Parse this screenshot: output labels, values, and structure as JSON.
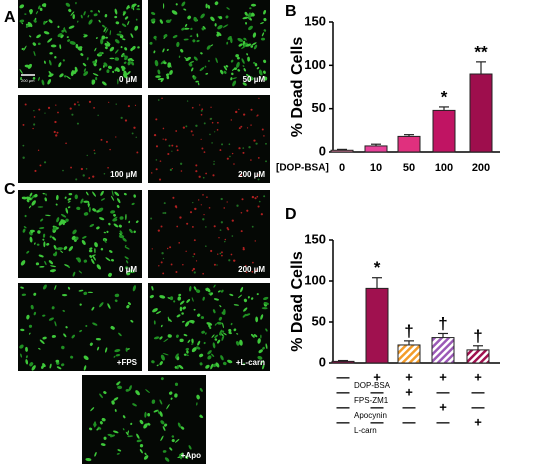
{
  "image_panels": [
    {
      "label": "A",
      "captions": [
        "0 µM",
        "50 µM",
        "100 µM",
        "200 µM"
      ],
      "scale_bar": "200 µm"
    },
    {
      "label": "C",
      "captions": [
        "0 µM",
        "200 µM",
        "+FPS",
        "+L-carn",
        "+Apo"
      ]
    }
  ],
  "chart_data": [
    {
      "type": "bar",
      "panel_label": "B",
      "y_label": "% Dead Cells",
      "x_label": "[DOP-BSA]",
      "categories": [
        "0",
        "10",
        "50",
        "100",
        "200"
      ],
      "values": [
        2,
        7,
        18,
        48,
        90
      ],
      "errors": [
        1,
        2,
        2,
        4,
        14
      ],
      "colors": [
        "#f48fb1",
        "#e8429a",
        "#e0307e",
        "#c01463",
        "#9e0e4d"
      ],
      "annotations": [
        null,
        null,
        null,
        "*",
        "**"
      ],
      "ylim": [
        0,
        150
      ],
      "yticks": [
        0,
        50,
        100,
        150
      ]
    },
    {
      "type": "bar",
      "panel_label": "D",
      "y_label": "% Dead Cells",
      "categories": [
        null,
        null,
        null,
        null,
        null
      ],
      "values": [
        2,
        91,
        22,
        31,
        16
      ],
      "errors": [
        1,
        13,
        5,
        5,
        5
      ],
      "colors": [
        "#a0114f",
        "#a0114f",
        "#f39c2a",
        "#9b59b6",
        "#a0114f"
      ],
      "hatched": [
        false,
        false,
        true,
        true,
        true
      ],
      "annotations": [
        null,
        "*",
        "†",
        "†",
        "†"
      ],
      "ylim": [
        0,
        150
      ],
      "yticks": [
        0,
        50,
        100,
        150
      ],
      "treatments": [
        {
          "name": "DOP-BSA",
          "signs": [
            "—",
            "+",
            "+",
            "+",
            "+"
          ]
        },
        {
          "name": "FPS-ZM1",
          "signs": [
            "—",
            "—",
            "+",
            "—",
            "—"
          ]
        },
        {
          "name": "Apocynin",
          "signs": [
            "—",
            "—",
            "—",
            "+",
            "—"
          ]
        },
        {
          "name": "L-carn",
          "signs": [
            "—",
            "—",
            "—",
            "—",
            "+"
          ]
        }
      ]
    }
  ]
}
